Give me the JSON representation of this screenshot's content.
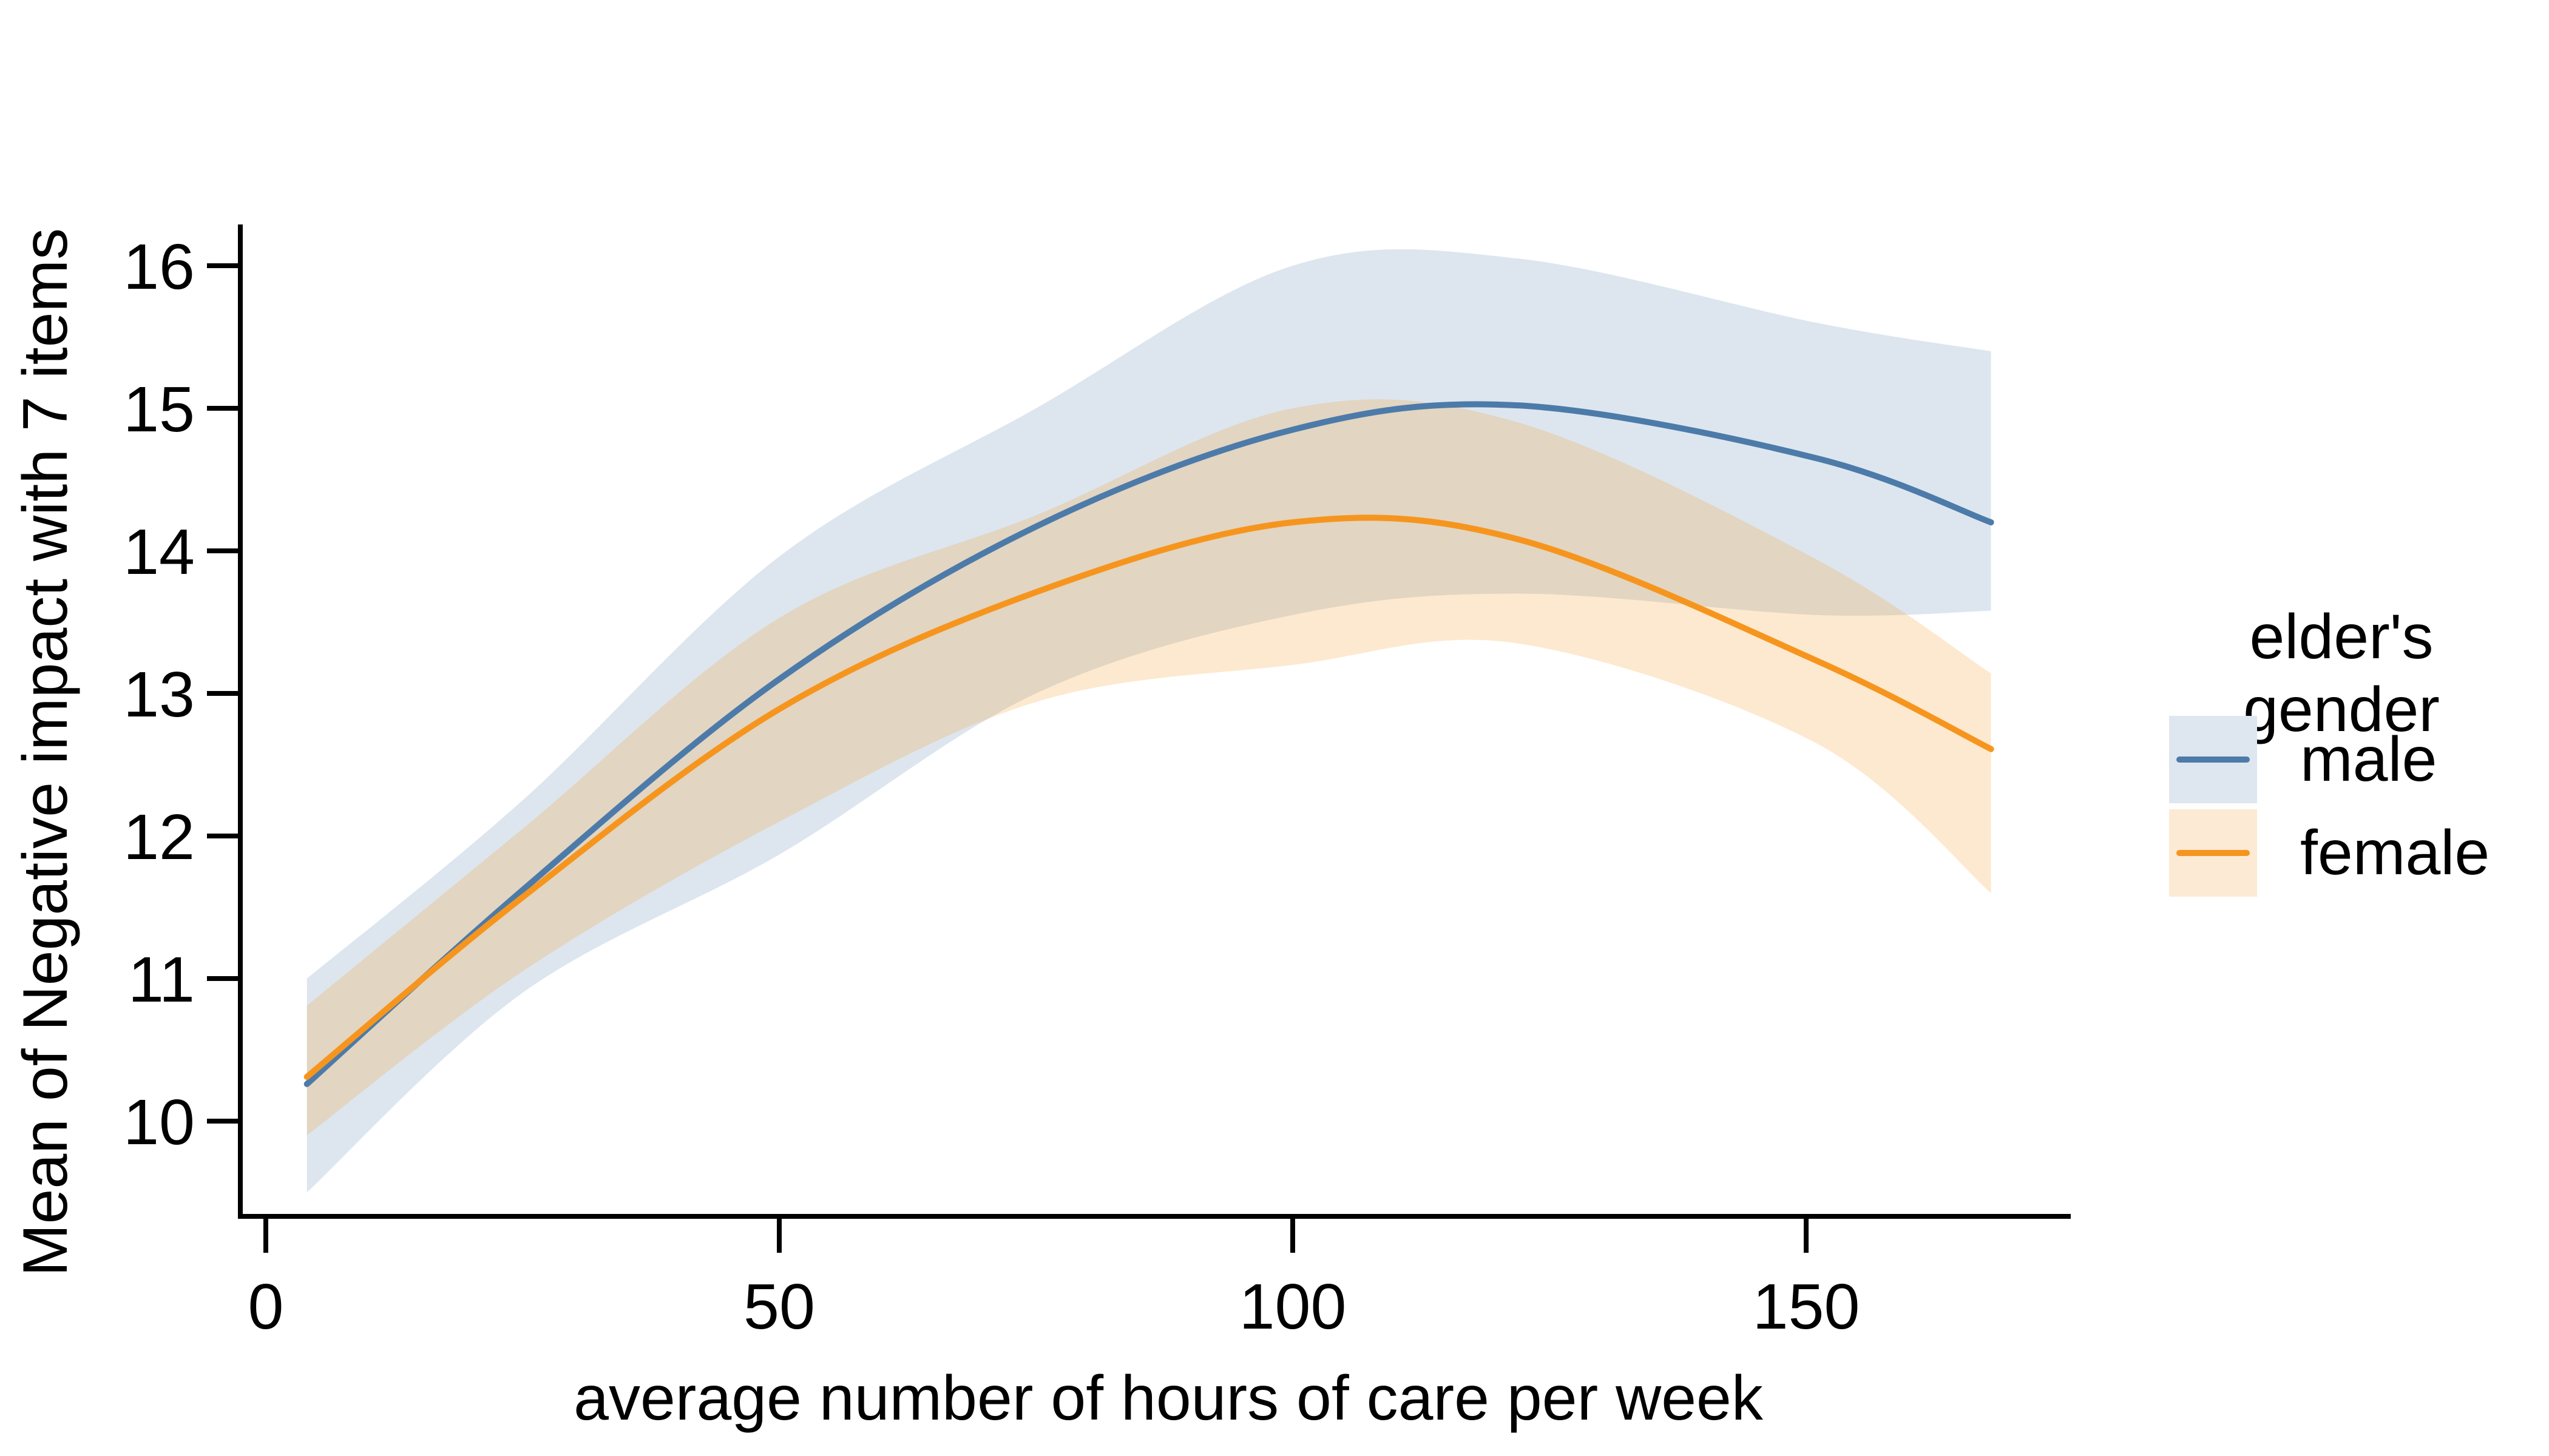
{
  "chart_data": {
    "type": "line",
    "title": "",
    "xlabel": "average number of hours of care per week",
    "ylabel": "Mean of Negative impact with 7 items",
    "x_ticks": [
      0,
      50,
      100,
      150
    ],
    "y_ticks": [
      10,
      11,
      12,
      13,
      14,
      15,
      16
    ],
    "xlim": [
      0,
      176
    ],
    "ylim": [
      9.3,
      16.3
    ],
    "grid": "off",
    "legend": {
      "title": "elder's gender",
      "position": "right-outside",
      "entries": [
        "male",
        "female"
      ]
    },
    "colors": {
      "male_line": "#4d7ba9",
      "male_band": "rgba(77,123,169,0.19)",
      "female_line": "#f6951e",
      "female_band": "rgba(246,149,30,0.21)",
      "axis": "#000000"
    },
    "series": [
      {
        "name": "male",
        "x": [
          4,
          25,
          50,
          75,
          100,
          122,
          151,
          168
        ],
        "y": [
          10.26,
          11.62,
          13.1,
          14.17,
          14.85,
          15.02,
          14.65,
          14.2
        ],
        "ci_upper": [
          11.0,
          12.25,
          13.96,
          15.0,
          16.0,
          16.05,
          15.6,
          15.4
        ],
        "ci_lower": [
          9.5,
          10.9,
          11.87,
          13.0,
          13.55,
          13.7,
          13.55,
          13.58
        ]
      },
      {
        "name": "female",
        "x": [
          4,
          25,
          50,
          75,
          100,
          122,
          151,
          168
        ],
        "y": [
          10.31,
          11.57,
          12.89,
          13.71,
          14.2,
          14.08,
          13.23,
          12.61
        ],
        "ci_upper": [
          10.81,
          12.05,
          13.53,
          14.25,
          15.0,
          14.9,
          13.94,
          13.14
        ],
        "ci_lower": [
          9.9,
          11.05,
          12.1,
          12.94,
          13.2,
          13.35,
          12.65,
          11.6
        ]
      }
    ]
  }
}
